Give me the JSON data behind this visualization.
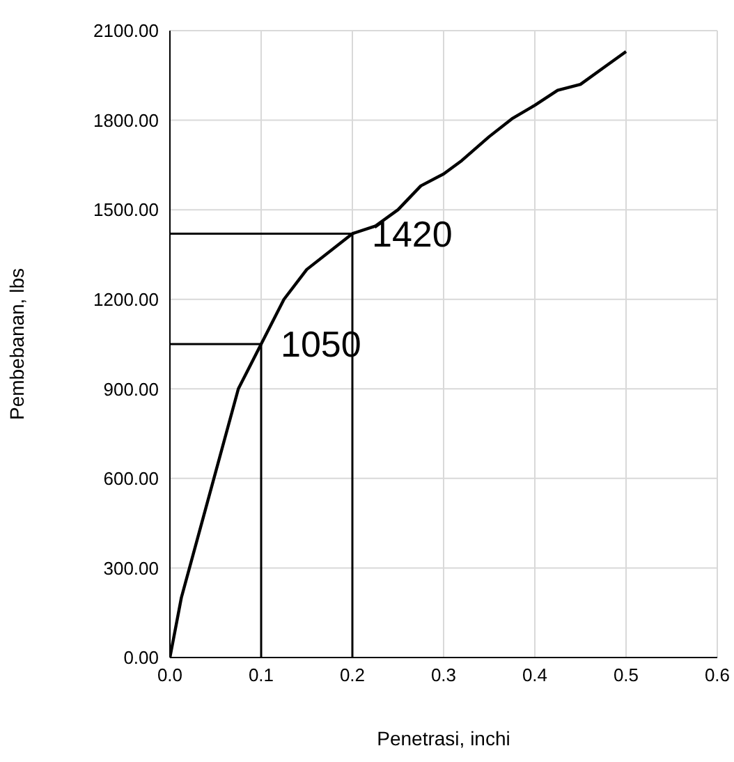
{
  "chart_data": {
    "type": "line",
    "xlabel": "Penetrasi, inchi",
    "ylabel": "Pembebanan, lbs",
    "series": [
      {
        "color": "#000000",
        "x": [
          0,
          0.0125,
          0.075,
          0.1,
          0.125,
          0.15,
          0.2,
          0.225,
          0.25,
          0.275,
          0.3,
          0.32,
          0.35,
          0.375,
          0.4,
          0.425,
          0.45,
          0.475,
          0.5
        ],
        "values": [
          0,
          200,
          900,
          1050,
          1200,
          1300,
          1420,
          1445,
          1500,
          1580,
          1620,
          1665,
          1745,
          1805,
          1850,
          1900,
          1920,
          1975,
          2030
        ]
      },
      {
        "color": "#000000",
        "x": [
          0,
          0.2,
          0.2
        ],
        "values": [
          1420,
          1420,
          0
        ]
      },
      {
        "color": "#000000",
        "x": [
          0,
          0.1,
          0.1
        ],
        "values": [
          1050,
          1050,
          0
        ]
      }
    ],
    "annotations": [
      {
        "text": "1420",
        "x": 0.2,
        "y": 1420
      },
      {
        "text": "1050",
        "x": 0.1,
        "y": 1050
      }
    ],
    "xlim": [
      0,
      0.6
    ],
    "xticks": [
      {
        "value": 0,
        "label": "0.0"
      },
      {
        "value": 0.1,
        "label": "0.1"
      },
      {
        "value": 0.2,
        "label": "0.2"
      },
      {
        "value": 0.3,
        "label": "0.3"
      },
      {
        "value": 0.4,
        "label": "0.4"
      },
      {
        "value": 0.5,
        "label": "0.5"
      },
      {
        "value": 0.6,
        "label": "0.6"
      }
    ],
    "ylim": [
      0,
      2100
    ],
    "yticks": [
      {
        "value": 0,
        "label": "0.00"
      },
      {
        "value": 300,
        "label": "300.00"
      },
      {
        "value": 600,
        "label": "600.00"
      },
      {
        "value": 900,
        "label": "900.00"
      },
      {
        "value": 1200,
        "label": "1200.00"
      },
      {
        "value": 1500,
        "label": "1500.00"
      },
      {
        "value": 1800,
        "label": "1800.00"
      },
      {
        "value": 2100,
        "label": "2100.00"
      }
    ],
    "grid": true,
    "legend": false,
    "marker": "none",
    "line_style": "solid"
  }
}
